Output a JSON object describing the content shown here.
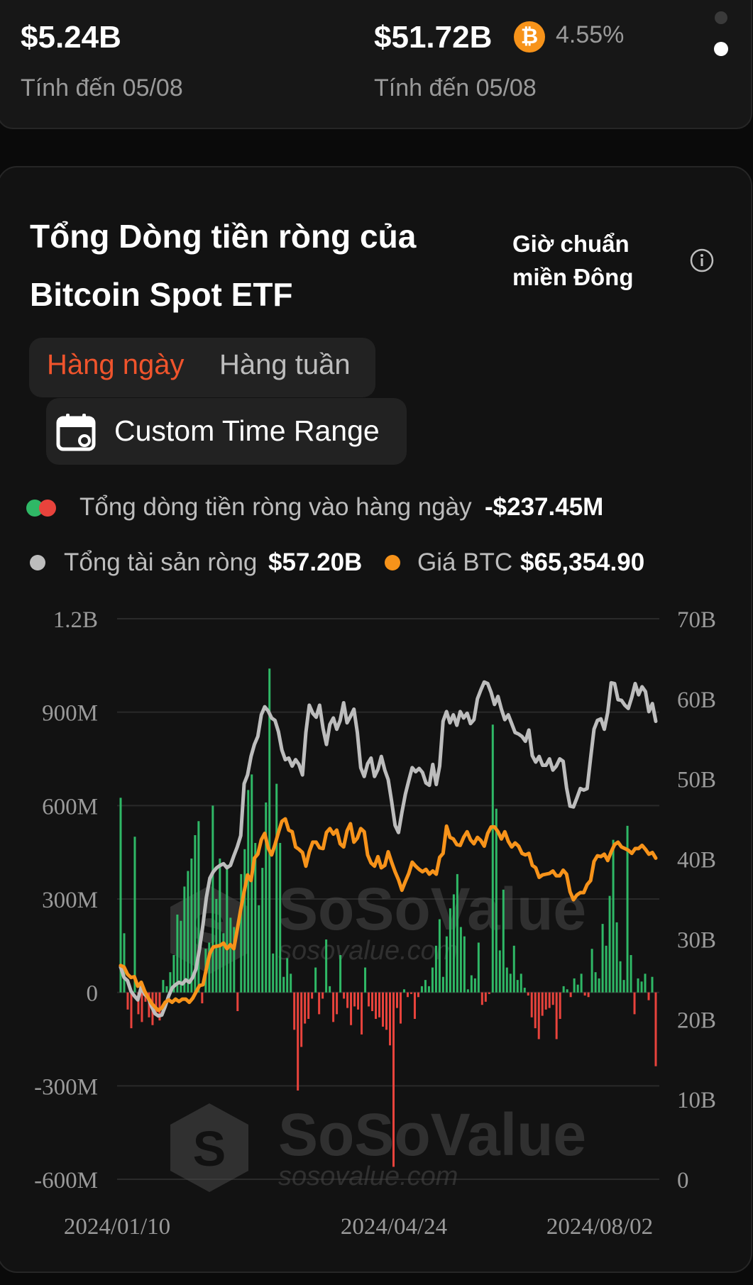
{
  "summary": {
    "left_value": "$5.24B",
    "left_caption": "Tính đến 05/08",
    "right_value": "$51.72B",
    "right_caption": "Tính đến 05/08",
    "btc_symbol": "₿",
    "right_percent": "4.55%"
  },
  "card": {
    "title_line1": "Tổng Dòng tiền ròng của",
    "title_line2": "Bitcoin Spot ETF",
    "timezone_line1": "Giờ chuẩn",
    "timezone_line2": "miền Đông",
    "tabs": [
      "Hàng ngày",
      "Hàng tuần"
    ],
    "active_tab": "Hàng ngày",
    "range_button": "Custom Time Range"
  },
  "legend": {
    "daily_flow_label": "Tổng dòng tiền ròng vào hàng ngày",
    "daily_flow_value": "-$237.45M",
    "net_assets_label": "Tổng tài sản ròng",
    "net_assets_value": "$57.20B",
    "btc_price_label": "Giá BTC",
    "btc_price_value": "$65,354.90"
  },
  "colors": {
    "inflow": "#2fb866",
    "outflow": "#e8433c",
    "net_assets_line": "#bdbdbd",
    "btc_price_line": "#f7931a",
    "accent": "#f0542c"
  },
  "watermark": {
    "brand": "SoSoValue",
    "url": "sosovalue.com"
  },
  "chart_data": {
    "type": "bar",
    "left_axis": {
      "ticks": [
        "1.2B",
        "900M",
        "600M",
        "300M",
        "0",
        "-300M",
        "-600M"
      ],
      "min": -600,
      "max": 1200,
      "unit": "M"
    },
    "right_axis": {
      "ticks": [
        "70B",
        "60B",
        "50B",
        "40B",
        "30B",
        "20B",
        "10B",
        "0"
      ],
      "min": 0,
      "max": 70,
      "unit": "B"
    },
    "x_tick_labels": [
      "2024/01/10",
      "2024/04/24",
      "2024/08/02"
    ],
    "series": [
      {
        "name": "Tổng dòng tiền ròng vào hàng ngày",
        "kind": "bar",
        "axis": "left",
        "values": [
          625,
          190,
          -55,
          -115,
          500,
          -70,
          -95,
          -30,
          -80,
          -105,
          -65,
          -90,
          40,
          20,
          65,
          120,
          250,
          230,
          340,
          390,
          430,
          505,
          550,
          -35,
          140,
          160,
          600,
          300,
          430,
          190,
          410,
          240,
          210,
          -60,
          380,
          460,
          650,
          700,
          480,
          280,
          400,
          610,
          1040,
          125,
          670,
          480,
          50,
          110,
          60,
          -120,
          -315,
          -175,
          -100,
          -85,
          -20,
          80,
          -70,
          -20,
          170,
          20,
          -95,
          -70,
          120,
          -20,
          -50,
          -105,
          -45,
          -55,
          -135,
          80,
          -45,
          -60,
          -85,
          -80,
          -110,
          -120,
          -170,
          -560,
          -50,
          -100,
          10,
          -15,
          -5,
          -85,
          -15,
          20,
          40,
          20,
          80,
          150,
          235,
          50,
          180,
          270,
          315,
          380,
          210,
          180,
          10,
          55,
          45,
          160,
          -40,
          -30,
          -5,
          860,
          590,
          135,
          330,
          80,
          60,
          150,
          40,
          60,
          15,
          -10,
          -80,
          -115,
          -150,
          -75,
          -55,
          -50,
          -40,
          -150,
          -85,
          20,
          10,
          -15,
          45,
          25,
          60,
          -10,
          -15,
          140,
          65,
          45,
          220,
          150,
          310,
          490,
          225,
          100,
          40,
          535,
          120,
          -70,
          45,
          35,
          60,
          -25,
          50,
          -237
        ]
      },
      {
        "name": "Tổng tài sản ròng",
        "kind": "line",
        "axis": "right",
        "values": [
          26.5,
          25.2,
          24.8,
          23.5,
          22.9,
          22.4,
          24,
          23.1,
          22.7,
          21.6,
          20.7,
          20.4,
          20.5,
          21.6,
          22.9,
          23.9,
          24.3,
          24.6,
          24.4,
          24.9,
          24.6,
          25.2,
          26.3,
          28.8,
          31.8,
          35.2,
          37.6,
          38.4,
          38.9,
          39.2,
          39.4,
          38.9,
          39.2,
          40.4,
          41.5,
          42.9,
          49.4,
          50.5,
          52.8,
          54.3,
          55.3,
          58,
          59,
          58.5,
          57.6,
          57.3,
          55.9,
          53.6,
          52.4,
          52.6,
          51.6,
          52.4,
          51.8,
          50.5,
          55.8,
          59.2,
          58.2,
          57.7,
          59.2,
          56.3,
          54.3,
          56.8,
          57.6,
          56.2,
          57.3,
          59.5,
          57,
          57.8,
          58.7,
          55.8,
          51.4,
          50.3,
          51.9,
          52.6,
          50.3,
          51.2,
          52.8,
          51.1,
          49.9,
          47.2,
          44.2,
          43.3,
          45.8,
          48.1,
          49.8,
          51.4,
          50.9,
          51.3,
          50.8,
          49.5,
          49.2,
          51.8,
          49.3,
          51.6,
          57.2,
          58.4,
          57,
          58,
          56.7,
          58.4,
          57.6,
          58.2,
          56.9,
          57.4,
          60,
          61.1,
          62.1,
          61.9,
          60.8,
          59.3,
          60.3,
          58.7,
          57.4,
          58,
          56.9,
          55.8,
          55.6,
          55.3,
          54.7,
          56.1,
          52.9,
          52.1,
          52.8,
          51.7,
          51.7,
          52.5,
          51.1,
          51.6,
          52.5,
          52.2,
          48.9,
          46.6,
          46.5,
          47.6,
          48.8,
          48.6,
          48.8,
          52.6,
          56.2,
          57.3,
          57.5,
          56.2,
          58.3,
          62,
          61.9,
          59.9,
          59.8,
          59.2,
          58.8,
          60.2,
          61.9,
          60.5,
          61.5,
          60.9,
          58.4,
          59.4,
          57.2
        ]
      },
      {
        "name": "Giá BTC",
        "kind": "line",
        "axis": "right",
        "values": [
          26.7,
          26.5,
          25.6,
          25.2,
          25.3,
          24.1,
          24.6,
          23.5,
          22.7,
          22,
          21.5,
          21.1,
          21.4,
          22.1,
          22.4,
          22.1,
          22.5,
          22.2,
          22.5,
          22.5,
          22.1,
          22.6,
          23.4,
          24.2,
          24.3,
          26.3,
          28.2,
          29,
          29.1,
          29.2,
          29.5,
          28.8,
          29.3,
          28.8,
          31.2,
          33.7,
          35.9,
          38,
          37.3,
          40.1,
          40.6,
          42.4,
          43.2,
          41.4,
          40.5,
          41.8,
          43.3,
          44.7,
          45,
          43.6,
          43.4,
          41.5,
          41.2,
          40.8,
          39.1,
          40.9,
          42.1,
          42.1,
          41.4,
          41.3,
          43.3,
          43.8,
          43.1,
          43.6,
          41.9,
          41.5,
          43.5,
          44.4,
          42.1,
          42.6,
          43.8,
          43.4,
          40.5,
          39.5,
          39.1,
          40.3,
          38.9,
          39.2,
          40.9,
          39.6,
          38.4,
          37.4,
          36.1,
          37.2,
          38.2,
          39.6,
          39.1,
          38.7,
          38.4,
          38.7,
          38.1,
          38.5,
          38.1,
          40.2,
          40.7,
          44.1,
          42.7,
          42.5,
          41.8,
          41.7,
          42.7,
          43.4,
          42.4,
          41.9,
          42.7,
          42.3,
          41.6,
          43.2,
          44,
          44,
          43.4,
          42.5,
          43.4,
          42.2,
          41.5,
          42,
          41.6,
          40.7,
          40.5,
          40.7,
          39.2,
          38.9,
          37.7,
          38,
          38.1,
          38.2,
          38.5,
          37.9,
          37.9,
          38.6,
          38.1,
          35.9,
          34.9,
          35.5,
          35.8,
          35.8,
          36.8,
          37.3,
          39.7,
          40.4,
          40.3,
          40.6,
          39.8,
          40.9,
          41.8,
          42.1,
          41.5,
          41.3,
          41.1,
          40.7,
          41.3,
          41.3,
          41.7,
          41.2,
          40.6,
          40.8,
          40.1
        ]
      }
    ]
  }
}
